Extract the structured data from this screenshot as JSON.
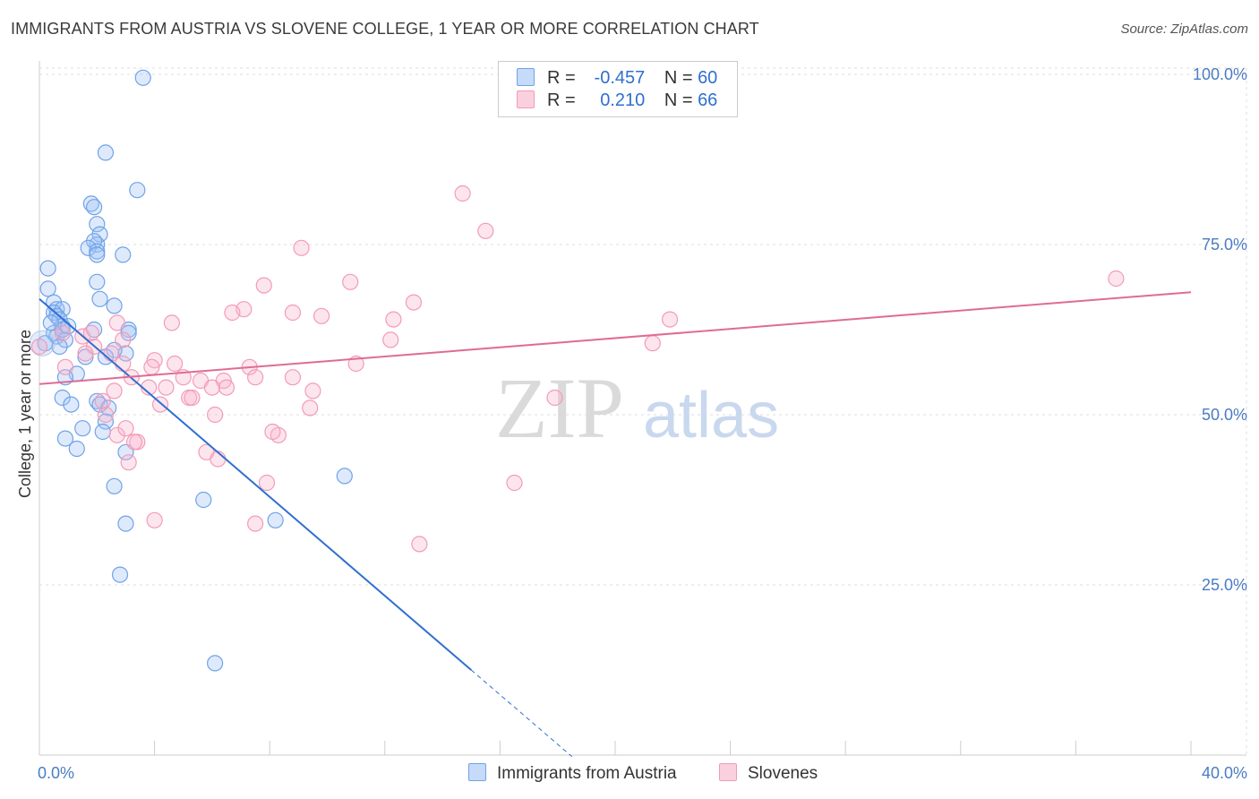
{
  "chart_data": {
    "type": "scatter",
    "title": "IMMIGRANTS FROM AUSTRIA VS SLOVENE COLLEGE, 1 YEAR OR MORE CORRELATION CHART",
    "source": "Source: ZipAtlas.com",
    "xlabel": "",
    "ylabel": "College, 1 year or more",
    "xlim": [
      0,
      40
    ],
    "ylim": [
      0,
      100
    ],
    "x_tick_labels": [
      "0.0%",
      "40.0%"
    ],
    "y_ticks": [
      25,
      50,
      75,
      100
    ],
    "y_tick_labels": [
      "25.0%",
      "50.0%",
      "75.0%",
      "100.0%"
    ],
    "grid": true,
    "watermark": {
      "zip": "ZIP",
      "atlas": "atlas"
    },
    "legend": {
      "rows": [
        {
          "r_label": "R =",
          "r_value": "-0.457",
          "n_label": "N =",
          "n_value": "60"
        },
        {
          "r_label": "R =",
          "r_value": "0.210",
          "n_label": "N =",
          "n_value": "66"
        }
      ]
    },
    "series": [
      {
        "name": "Immigrants from Austria",
        "color": "#6fa3e8",
        "line_color": "#2f6fd0",
        "trend": {
          "x0": 0,
          "y0": 67.0,
          "x1": 15.0,
          "y1": 12.5,
          "dash_to_x": 18.5
        },
        "points": [
          [
            3.6,
            99.5
          ],
          [
            2.3,
            88.5
          ],
          [
            3.4,
            83
          ],
          [
            1.8,
            81
          ],
          [
            1.9,
            80.5
          ],
          [
            2.0,
            78
          ],
          [
            2.1,
            76.5
          ],
          [
            2.0,
            75
          ],
          [
            1.9,
            75.5
          ],
          [
            1.7,
            74.5
          ],
          [
            2.0,
            74
          ],
          [
            2.0,
            73.5
          ],
          [
            2.9,
            73.5
          ],
          [
            0.3,
            71.5
          ],
          [
            2.0,
            69.5
          ],
          [
            0.3,
            68.5
          ],
          [
            0.5,
            66.5
          ],
          [
            2.1,
            67
          ],
          [
            0.6,
            65.5
          ],
          [
            0.8,
            65.5
          ],
          [
            0.5,
            65
          ],
          [
            0.6,
            64.5
          ],
          [
            2.6,
            66
          ],
          [
            0.7,
            64
          ],
          [
            0.8,
            63
          ],
          [
            3.1,
            62.5
          ],
          [
            3.1,
            62
          ],
          [
            0.5,
            62
          ],
          [
            0.6,
            61.5
          ],
          [
            0.9,
            61
          ],
          [
            0.8,
            62.5
          ],
          [
            0.7,
            60
          ],
          [
            3.0,
            59
          ],
          [
            2.6,
            59.5
          ],
          [
            2.3,
            58.5
          ],
          [
            1.3,
            56
          ],
          [
            0.8,
            52.5
          ],
          [
            2.0,
            52
          ],
          [
            2.1,
            51.5
          ],
          [
            1.1,
            51.5
          ],
          [
            2.4,
            51
          ],
          [
            2.3,
            49
          ],
          [
            1.5,
            48
          ],
          [
            2.2,
            47.5
          ],
          [
            0.9,
            46.5
          ],
          [
            1.3,
            45
          ],
          [
            3.0,
            44.5
          ],
          [
            2.6,
            39.5
          ],
          [
            5.7,
            37.5
          ],
          [
            8.2,
            34.5
          ],
          [
            10.6,
            41
          ],
          [
            3.0,
            34
          ],
          [
            2.8,
            26.5
          ],
          [
            6.1,
            13.5
          ],
          [
            0.2,
            60.5
          ],
          [
            1.0,
            63
          ],
          [
            0.4,
            63.5
          ],
          [
            1.9,
            62.5
          ],
          [
            1.6,
            58.5
          ],
          [
            0.9,
            55.5
          ]
        ]
      },
      {
        "name": "Slovenes",
        "color": "#f29bb8",
        "line_color": "#e06b95",
        "trend": {
          "x0": 0,
          "y0": 54.5,
          "x1": 40.0,
          "y1": 68.0
        },
        "points": [
          [
            14.7,
            82.5
          ],
          [
            15.5,
            77
          ],
          [
            9.1,
            74.5
          ],
          [
            37.4,
            70
          ],
          [
            10.8,
            69.5
          ],
          [
            7.8,
            69
          ],
          [
            13.0,
            66.5
          ],
          [
            7.1,
            65.5
          ],
          [
            6.7,
            65
          ],
          [
            8.8,
            65
          ],
          [
            9.8,
            64.5
          ],
          [
            12.3,
            64
          ],
          [
            4.6,
            63.5
          ],
          [
            2.7,
            63.5
          ],
          [
            21.9,
            64
          ],
          [
            2.9,
            61
          ],
          [
            1.5,
            61.5
          ],
          [
            12.2,
            61
          ],
          [
            21.3,
            60.5
          ],
          [
            1.9,
            60
          ],
          [
            1.6,
            59
          ],
          [
            2.5,
            59
          ],
          [
            2.9,
            57.5
          ],
          [
            4.0,
            58
          ],
          [
            4.7,
            57.5
          ],
          [
            3.9,
            57
          ],
          [
            11.0,
            57.5
          ],
          [
            0.9,
            57
          ],
          [
            7.3,
            57
          ],
          [
            3.2,
            55.5
          ],
          [
            6.4,
            55
          ],
          [
            5.6,
            55
          ],
          [
            5.0,
            55.5
          ],
          [
            7.5,
            55.5
          ],
          [
            8.8,
            55.5
          ],
          [
            4.4,
            54
          ],
          [
            2.6,
            53.5
          ],
          [
            6.0,
            54
          ],
          [
            6.5,
            54
          ],
          [
            9.5,
            53.5
          ],
          [
            5.2,
            52.5
          ],
          [
            5.3,
            52.5
          ],
          [
            4.2,
            51.5
          ],
          [
            17.9,
            52.5
          ],
          [
            9.4,
            51
          ],
          [
            6.1,
            50
          ],
          [
            2.3,
            50
          ],
          [
            8.3,
            47
          ],
          [
            8.1,
            47.5
          ],
          [
            2.7,
            47
          ],
          [
            3.4,
            46
          ],
          [
            3.3,
            46
          ],
          [
            5.8,
            44.5
          ],
          [
            6.2,
            43.5
          ],
          [
            3.1,
            43
          ],
          [
            16.5,
            40
          ],
          [
            7.9,
            40
          ],
          [
            4.0,
            34.5
          ],
          [
            7.5,
            34
          ],
          [
            13.2,
            31
          ],
          [
            1.8,
            62
          ],
          [
            3.0,
            48
          ],
          [
            2.2,
            52
          ],
          [
            3.8,
            54
          ],
          [
            0.8,
            62
          ],
          [
            0.0,
            60
          ]
        ]
      }
    ]
  }
}
